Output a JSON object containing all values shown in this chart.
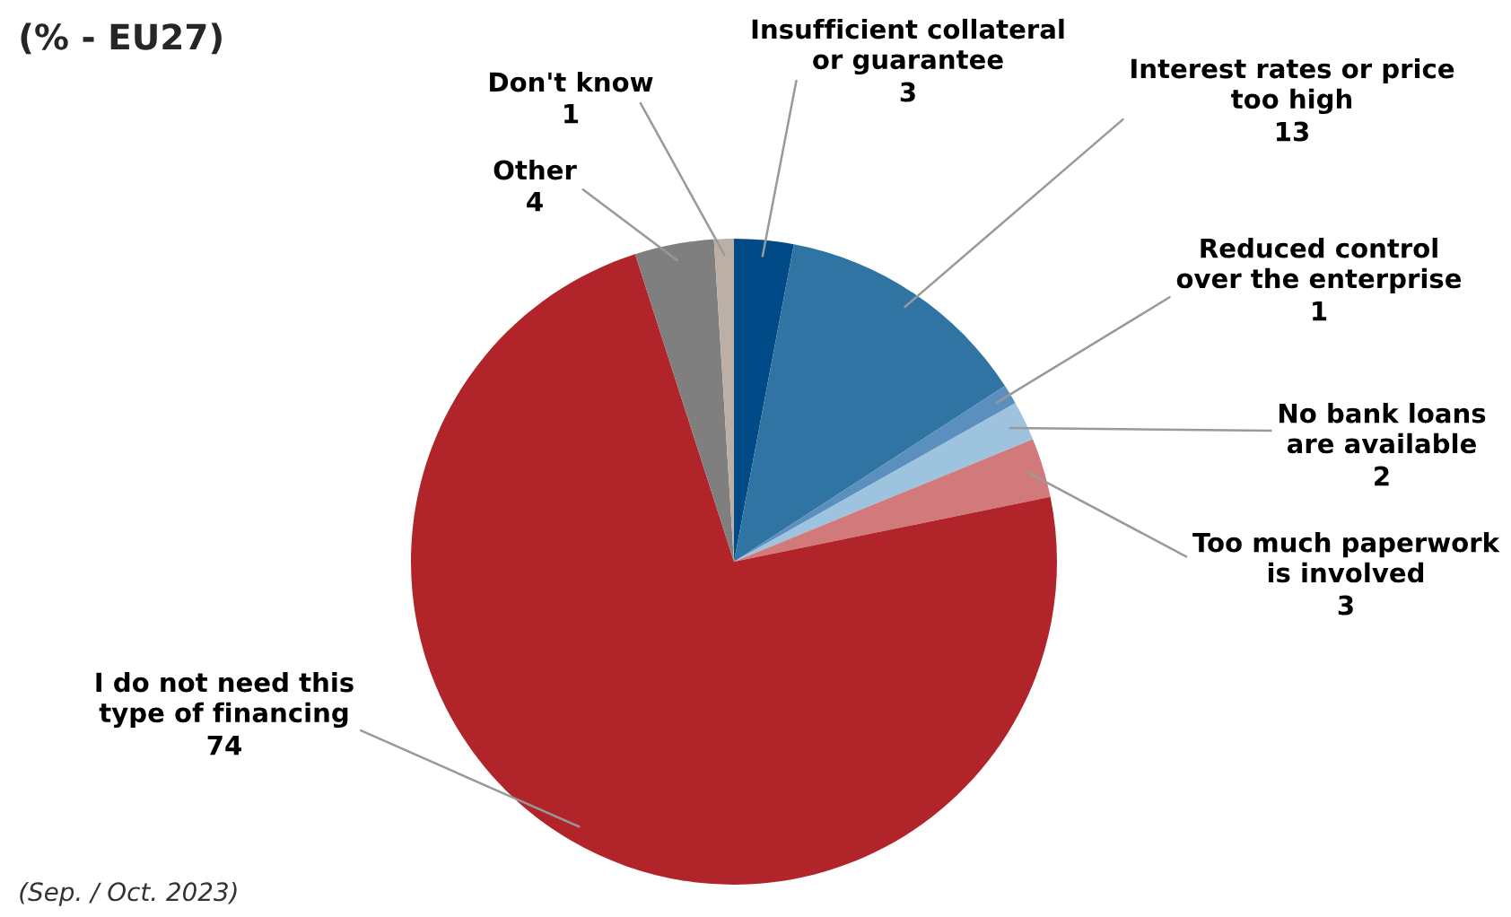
{
  "chart_data": {
    "type": "pie",
    "title": "(% - EU27)",
    "categories": [
      "Insufficient collateral\nor guarantee",
      "Interest rates or price\ntoo high",
      "Reduced control\nover the enterprise",
      "No bank loans\nare available",
      "Too much paperwork\nis involved",
      "I do not need this\ntype of financing",
      "Other",
      "Don't know"
    ],
    "values": [
      3,
      13,
      1,
      2,
      3,
      74,
      4,
      1
    ],
    "colors": [
      "#004b87",
      "#2f74a3",
      "#5a8fbe",
      "#9dc3de",
      "#d27a7b",
      "#b0242a",
      "#7f7f7f",
      "#bcb0a6"
    ],
    "data_labels": true,
    "annotations": [
      "(Sep. / Oct. 2023)"
    ]
  }
}
